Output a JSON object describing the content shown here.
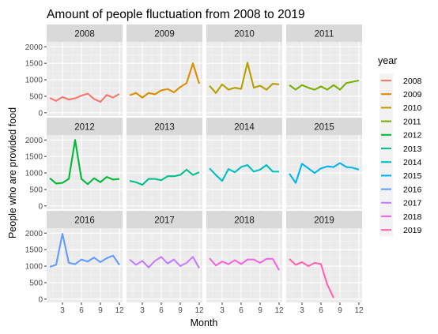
{
  "chart_data": {
    "type": "line",
    "title": "Amount of people fluctuation from 2008 to 2019",
    "xlabel": "Month",
    "ylabel": "People who are provided food",
    "xlim": [
      0.5,
      12.5
    ],
    "ylim": [
      -100,
      2150
    ],
    "x_ticks": [
      3,
      6,
      9,
      12
    ],
    "y_ticks": [
      0,
      500,
      1000,
      1500,
      2000
    ],
    "grid": true,
    "legend": {
      "title": "year",
      "placement": "right"
    },
    "x": [
      1,
      2,
      3,
      4,
      5,
      6,
      7,
      8,
      9,
      10,
      11,
      12
    ],
    "series": [
      {
        "name": "2008",
        "color": "#F8766D",
        "values": [
          450,
          360,
          480,
          400,
          440,
          520,
          580,
          420,
          330,
          540,
          460,
          570
        ]
      },
      {
        "name": "2009",
        "color": "#DE8C00",
        "values": [
          530,
          600,
          460,
          600,
          560,
          680,
          720,
          620,
          780,
          900,
          1500,
          880
        ]
      },
      {
        "name": "2010",
        "color": "#B79F00",
        "values": [
          820,
          600,
          860,
          700,
          760,
          720,
          1520,
          760,
          820,
          700,
          880,
          860
        ]
      },
      {
        "name": "2011",
        "color": "#7CAE00",
        "values": [
          840,
          700,
          840,
          760,
          700,
          800,
          700,
          840,
          700,
          900,
          940,
          980
        ]
      },
      {
        "name": "2012",
        "color": "#00BA38",
        "values": [
          840,
          680,
          700,
          820,
          2000,
          820,
          660,
          840,
          720,
          880,
          800,
          820
        ]
      },
      {
        "name": "2013",
        "color": "#00C08B",
        "values": [
          760,
          720,
          640,
          820,
          820,
          780,
          900,
          900,
          940,
          1100,
          940,
          1020
        ]
      },
      {
        "name": "2014",
        "color": "#00BFC4",
        "values": [
          1140,
          940,
          760,
          1120,
          1020,
          1180,
          1240,
          1040,
          1100,
          1240,
          1040,
          1040
        ]
      },
      {
        "name": "2015",
        "color": "#00B4F0",
        "values": [
          980,
          700,
          1280,
          1140,
          1000,
          1140,
          1200,
          1180,
          1300,
          1180,
          1160,
          1100
        ]
      },
      {
        "name": "2016",
        "color": "#619CFF",
        "values": [
          980,
          1040,
          1980,
          1100,
          1060,
          1200,
          1140,
          1260,
          1120,
          1240,
          1320,
          1040
        ]
      },
      {
        "name": "2017",
        "color": "#C77CFF",
        "values": [
          1200,
          1040,
          1160,
          960,
          1160,
          1280,
          1080,
          1200,
          1000,
          1100,
          1280,
          940
        ]
      },
      {
        "name": "2018",
        "color": "#F564E3",
        "values": [
          1240,
          1020,
          1140,
          1060,
          1180,
          1060,
          1200,
          1200,
          1100,
          1220,
          1220,
          880
        ]
      },
      {
        "name": "2019",
        "color": "#FF64B0",
        "values": [
          1220,
          1040,
          1120,
          1000,
          1100,
          1060,
          440,
          40,
          null,
          null,
          null,
          null
        ]
      }
    ]
  }
}
